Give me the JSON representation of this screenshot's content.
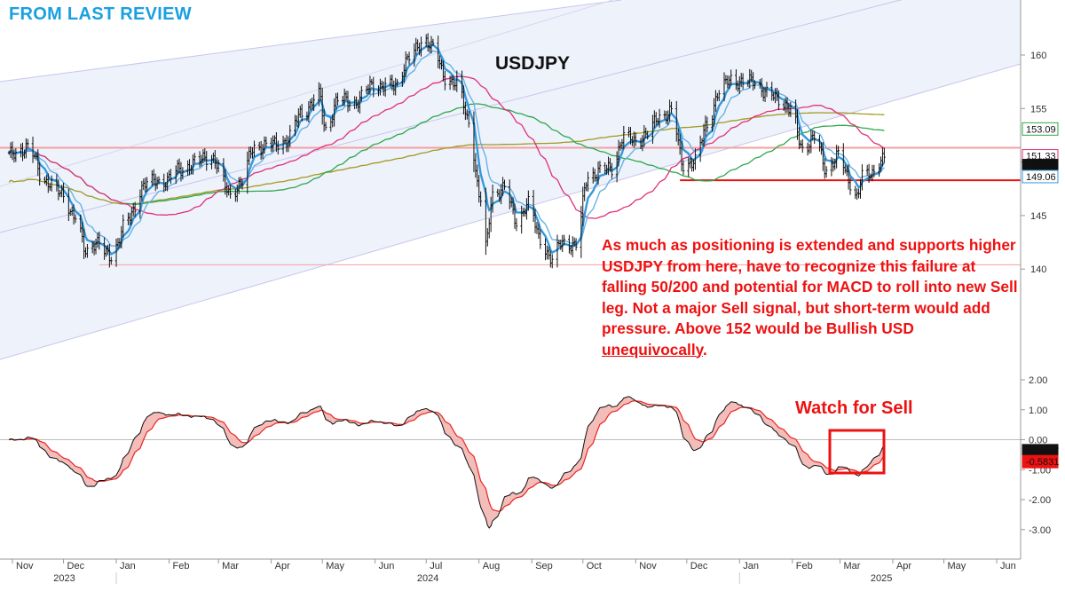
{
  "header": "FROM LAST REVIEW",
  "title": "USDJPY",
  "annotation": {
    "main": "As much as positioning is extended and supports higher USDJPY from here, have to recognize this failure at falling 50/200 and potential for MACD to roll into new Sell leg. Not a major Sell signal, but short-term would add pressure. Above 152 would be Bullish USD ",
    "underlined": "unequivocally",
    "end": "."
  },
  "callout": "Watch for Sell",
  "chart_data": [
    {
      "type": "line",
      "panel": "price",
      "title": "USDJPY",
      "y_ticks": [
        "140",
        "145",
        "150",
        "155",
        "160"
      ],
      "ylim": [
        137,
        165
      ],
      "x_months": [
        "Nov",
        "Dec",
        "Jan",
        "Feb",
        "Mar",
        "Apr",
        "May",
        "Jun",
        "Jul",
        "Aug",
        "Sep",
        "Oct",
        "Nov",
        "Dec",
        "Jan",
        "Feb",
        "Mar",
        "Apr",
        "May",
        "Jun"
      ],
      "x_years": [
        "2023",
        "2024",
        "2025"
      ],
      "colors": {
        "price": "#111111",
        "ma_fast": "#3399dd",
        "ma_slow": "#66b3e6",
        "ma50": "#e0307a",
        "ma100": "#2da84b",
        "ma200": "#a09a20",
        "support": "#ee1111",
        "ref_line": "#f4a0a0"
      },
      "horizontal_lines": [
        {
          "value": 151.33,
          "color": "#f4a0a0"
        },
        {
          "value": 140.4,
          "color": "#f4a0a0"
        },
        {
          "value": 148.3,
          "color": "#ee1111"
        }
      ],
      "value_tags": [
        {
          "label": "153.09",
          "value": 153.09,
          "color": "#2da84b"
        },
        {
          "label": "151.33",
          "value": 151.33,
          "color": "#e0307a"
        },
        {
          "label": "149.84",
          "value": 149.84,
          "color": "#111111"
        },
        {
          "label": "149.06",
          "value": 149.06,
          "color": "#3399dd"
        }
      ],
      "price_anchors": [
        [
          "2023-10-30",
          150.6
        ],
        [
          "2023-11-10",
          151.4
        ],
        [
          "2023-11-20",
          148.3
        ],
        [
          "2023-11-30",
          147.0
        ],
        [
          "2023-12-08",
          144.9
        ],
        [
          "2023-12-14",
          141.6
        ],
        [
          "2023-12-20",
          142.6
        ],
        [
          "2023-12-28",
          141.1
        ],
        [
          "2024-01-08",
          144.6
        ],
        [
          "2024-01-18",
          148.1
        ],
        [
          "2024-01-26",
          148.1
        ],
        [
          "2024-02-08",
          149.2
        ],
        [
          "2024-02-16",
          150.0
        ],
        [
          "2024-02-26",
          150.5
        ],
        [
          "2024-03-08",
          147.0
        ],
        [
          "2024-03-14",
          148.0
        ],
        [
          "2024-03-22",
          151.4
        ],
        [
          "2024-04-01",
          151.6
        ],
        [
          "2024-04-10",
          152.0
        ],
        [
          "2024-04-19",
          154.6
        ],
        [
          "2024-04-29",
          156.2
        ],
        [
          "2024-05-03",
          153.0
        ],
        [
          "2024-05-10",
          155.8
        ],
        [
          "2024-05-20",
          155.6
        ],
        [
          "2024-05-31",
          157.2
        ],
        [
          "2024-06-12",
          157.0
        ],
        [
          "2024-06-21",
          159.8
        ],
        [
          "2024-07-01",
          161.5
        ],
        [
          "2024-07-05",
          160.7
        ],
        [
          "2024-07-12",
          157.9
        ],
        [
          "2024-07-19",
          157.4
        ],
        [
          "2024-07-26",
          153.8
        ],
        [
          "2024-08-02",
          146.5
        ],
        [
          "2024-08-05",
          142.0
        ],
        [
          "2024-08-09",
          147.0
        ],
        [
          "2024-08-16",
          147.6
        ],
        [
          "2024-08-23",
          144.5
        ],
        [
          "2024-08-30",
          146.1
        ],
        [
          "2024-09-06",
          142.8
        ],
        [
          "2024-09-13",
          140.8
        ],
        [
          "2024-09-19",
          142.6
        ],
        [
          "2024-09-27",
          142.2
        ],
        [
          "2024-10-04",
          148.7
        ],
        [
          "2024-10-11",
          149.1
        ],
        [
          "2024-10-18",
          149.5
        ],
        [
          "2024-10-25",
          152.3
        ],
        [
          "2024-11-01",
          152.0
        ],
        [
          "2024-11-08",
          152.6
        ],
        [
          "2024-11-15",
          154.3
        ],
        [
          "2024-11-22",
          154.7
        ],
        [
          "2024-11-29",
          149.8
        ],
        [
          "2024-12-06",
          150.0
        ],
        [
          "2024-12-13",
          153.6
        ],
        [
          "2024-12-20",
          156.4
        ],
        [
          "2024-12-27",
          157.9
        ],
        [
          "2025-01-03",
          157.3
        ],
        [
          "2025-01-10",
          157.7
        ],
        [
          "2025-01-17",
          156.3
        ],
        [
          "2025-01-24",
          156.0
        ],
        [
          "2025-01-31",
          154.9
        ],
        [
          "2025-02-07",
          151.3
        ],
        [
          "2025-02-14",
          152.3
        ],
        [
          "2025-02-21",
          149.3
        ],
        [
          "2025-02-28",
          150.6
        ],
        [
          "2025-03-07",
          148.1
        ],
        [
          "2025-03-11",
          146.9
        ],
        [
          "2025-03-14",
          148.6
        ],
        [
          "2025-03-19",
          148.8
        ],
        [
          "2025-03-24",
          150.2
        ],
        [
          "2025-03-27",
          150.5
        ]
      ]
    },
    {
      "type": "line",
      "panel": "macd",
      "y_ticks": [
        "2.00",
        "1.00",
        "0.00",
        "-1.00",
        "-2.00",
        "-3.00"
      ],
      "ylim": [
        -3.6,
        2.4
      ],
      "series": [
        {
          "color": "#111111",
          "last": -0.1887
        },
        {
          "color": "#ee2222",
          "last": -0.5831
        }
      ],
      "value_tags": [
        {
          "label": "-0.1887",
          "color": "#111111"
        },
        {
          "label": "-0.5831",
          "color": "#ee1111"
        }
      ]
    }
  ]
}
